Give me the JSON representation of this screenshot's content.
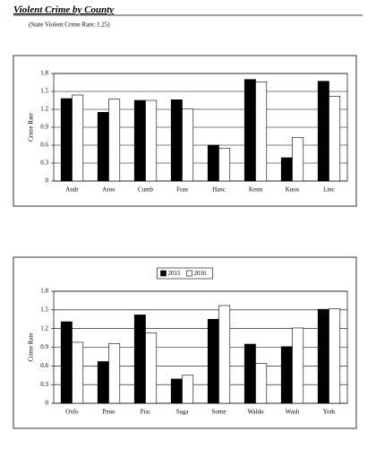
{
  "title": "Violent Crime by County",
  "subtitle": "(State Violent Crime Rate: 1.25)",
  "chart_data": [
    {
      "type": "bar",
      "y_label": "Crime Rate",
      "categories": [
        "Andr",
        "Aroo",
        "Cumb",
        "Fran",
        "Hanc",
        "Kenn",
        "Knox",
        "Linc"
      ],
      "series": [
        {
          "color": "#000000",
          "values": [
            1.38,
            1.15,
            1.35,
            1.36,
            0.6,
            1.7,
            0.39,
            1.67
          ]
        },
        {
          "color": "#ffffff",
          "values": [
            1.44,
            1.37,
            1.35,
            1.21,
            0.55,
            1.66,
            0.73,
            1.42
          ]
        }
      ],
      "ylim": [
        0,
        1.8
      ],
      "yticks": [
        0,
        0.3,
        0.6,
        0.9,
        1.2,
        1.5,
        1.8
      ],
      "grid": true
    },
    {
      "type": "bar",
      "y_label": "Crime Rate",
      "categories": [
        "Oxfo",
        "Peno",
        "Pisc",
        "Saga",
        "Some",
        "Waldo",
        "Wash",
        "York"
      ],
      "series": [
        {
          "name": "2015",
          "color": "#000000",
          "values": [
            1.31,
            0.67,
            1.42,
            0.39,
            1.35,
            0.95,
            0.91,
            1.51
          ]
        },
        {
          "name": "2016",
          "color": "#ffffff",
          "values": [
            0.98,
            0.96,
            1.13,
            0.45,
            1.57,
            0.64,
            1.21,
            1.52
          ]
        }
      ],
      "ylim": [
        0,
        1.8
      ],
      "yticks": [
        0,
        0.3,
        0.6,
        0.9,
        1.2,
        1.5,
        1.8
      ],
      "grid": true,
      "legend": "top"
    }
  ]
}
